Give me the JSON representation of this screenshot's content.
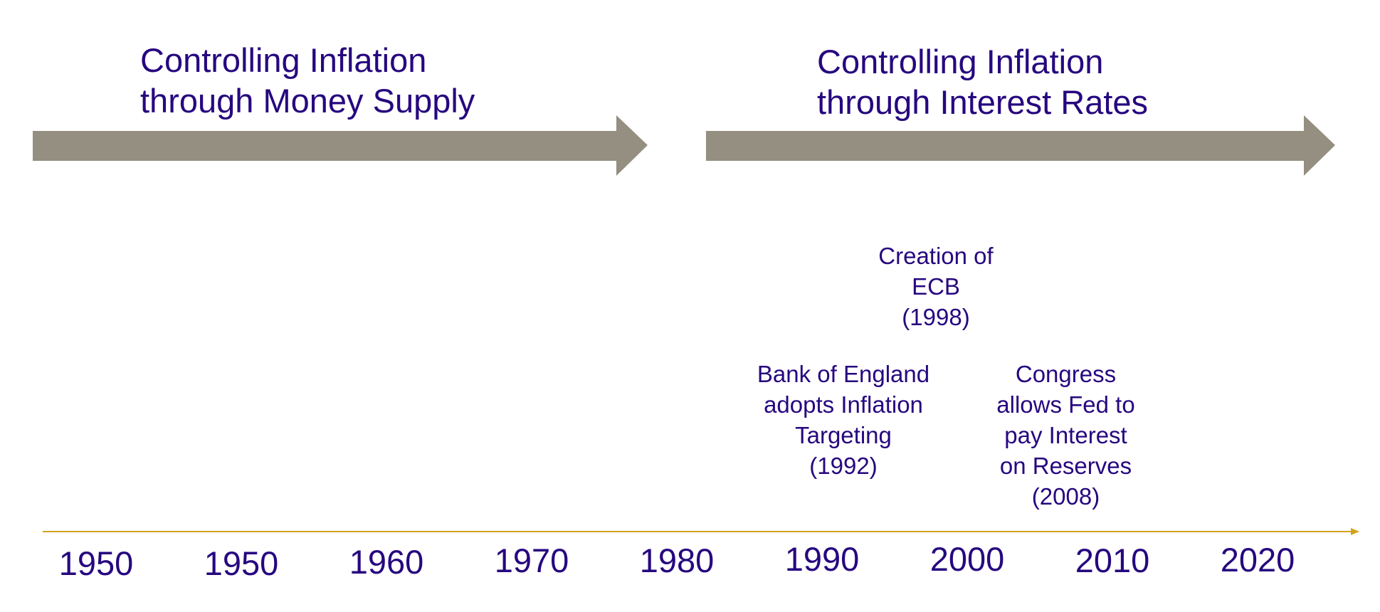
{
  "colors": {
    "text": "#26077f",
    "arrow": "#958f81",
    "axis": "#d1a21c"
  },
  "phases": [
    {
      "line1": "Controlling Inflation",
      "line2": "through Money Supply"
    },
    {
      "line1": "Controlling Inflation",
      "line2": "through Interest Rates"
    }
  ],
  "events": [
    {
      "lines": [
        "Creation of",
        "ECB",
        "(1998)"
      ]
    },
    {
      "lines": [
        "Bank of England",
        "adopts Inflation",
        "Targeting",
        "(1992)"
      ]
    },
    {
      "lines": [
        "Congress",
        "allows Fed to",
        "pay Interest",
        "on Reserves",
        "(2008)"
      ]
    }
  ],
  "years": [
    "1950",
    "1950",
    "1960",
    "1970",
    "1980",
    "1990",
    "2000",
    "2010",
    "2020"
  ]
}
